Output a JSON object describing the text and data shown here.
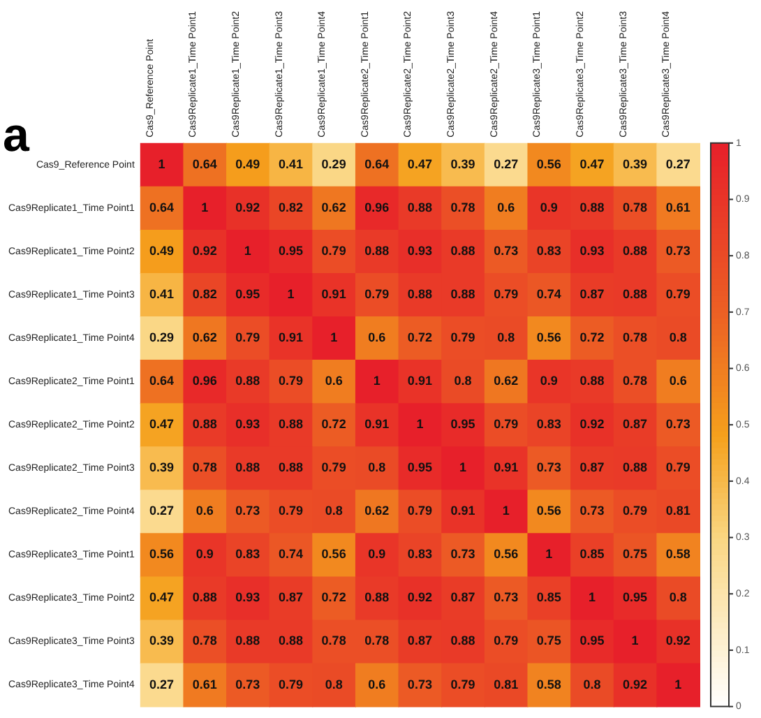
{
  "chart_data": {
    "type": "heatmap",
    "annotations": [
      "a"
    ],
    "categories": [
      "Cas9_Reference Point",
      "Cas9Replicate1_Time Point1",
      "Cas9Replicate1_Time Point2",
      "Cas9Replicate1_Time Point3",
      "Cas9Replicate1_Time Point4",
      "Cas9Replicate2_Time Point1",
      "Cas9Replicate2_Time Point2",
      "Cas9Replicate2_Time Point3",
      "Cas9Replicate2_Time Point4",
      "Cas9Replicate3_Time Point1",
      "Cas9Replicate3_Time Point2",
      "Cas9Replicate3_Time Point3",
      "Cas9Replicate3_Time Point4"
    ],
    "y_categories": [
      "Cas9_Reference Point",
      "Cas9Replicate1_Time Point1",
      "Cas9Replicate1_Time Point2",
      "Cas9Replicate1_Time Point3",
      "Cas9Replicate1_Time Point4",
      "Cas9Replicate2_Time Point1",
      "Cas9Replicate2_Time Point2",
      "Cas9Replicate2_Time Point3",
      "Cas9Replicate2_Time Point4",
      "Cas9Replicate3_Time Point1",
      "Cas9Replicate3_Time Point2",
      "Cas9Replicate3_Time Point3",
      "Cas9Replicate3_Time Point4"
    ],
    "cells": [
      [
        1,
        0.64,
        0.49,
        0.41,
        0.29,
        0.64,
        0.47,
        0.39,
        0.27,
        0.56,
        0.47,
        0.39,
        0.27
      ],
      [
        0.64,
        1,
        0.92,
        0.82,
        0.62,
        0.96,
        0.88,
        0.78,
        0.6,
        0.9,
        0.88,
        0.78,
        0.61
      ],
      [
        0.49,
        0.92,
        1,
        0.95,
        0.79,
        0.88,
        0.93,
        0.88,
        0.73,
        0.83,
        0.93,
        0.88,
        0.73
      ],
      [
        0.41,
        0.82,
        0.95,
        1,
        0.91,
        0.79,
        0.88,
        0.88,
        0.79,
        0.74,
        0.87,
        0.88,
        0.79
      ],
      [
        0.29,
        0.62,
        0.79,
        0.91,
        1,
        0.6,
        0.72,
        0.79,
        0.8,
        0.56,
        0.72,
        0.78,
        0.8
      ],
      [
        0.64,
        0.96,
        0.88,
        0.79,
        0.6,
        1,
        0.91,
        0.8,
        0.62,
        0.9,
        0.88,
        0.78,
        0.6
      ],
      [
        0.47,
        0.88,
        0.93,
        0.88,
        0.72,
        0.91,
        1,
        0.95,
        0.79,
        0.83,
        0.92,
        0.87,
        0.73
      ],
      [
        0.39,
        0.78,
        0.88,
        0.88,
        0.79,
        0.8,
        0.95,
        1,
        0.91,
        0.73,
        0.87,
        0.88,
        0.79
      ],
      [
        0.27,
        0.6,
        0.73,
        0.79,
        0.8,
        0.62,
        0.79,
        0.91,
        1,
        0.56,
        0.73,
        0.79,
        0.81
      ],
      [
        0.56,
        0.9,
        0.83,
        0.74,
        0.56,
        0.9,
        0.83,
        0.73,
        0.56,
        1,
        0.85,
        0.75,
        0.58
      ],
      [
        0.47,
        0.88,
        0.93,
        0.87,
        0.72,
        0.88,
        0.92,
        0.87,
        0.73,
        0.85,
        1,
        0.95,
        0.8
      ],
      [
        0.39,
        0.78,
        0.88,
        0.88,
        0.78,
        0.78,
        0.87,
        0.88,
        0.79,
        0.75,
        0.95,
        1,
        0.92
      ],
      [
        0.27,
        0.61,
        0.73,
        0.79,
        0.8,
        0.6,
        0.73,
        0.79,
        0.81,
        0.58,
        0.8,
        0.92,
        1
      ]
    ],
    "data_labels": true,
    "clim": [
      0,
      1
    ],
    "cticks": [
      0,
      0.1,
      0.2,
      0.3,
      0.4,
      0.5,
      0.6,
      0.7,
      0.8,
      0.9,
      1
    ]
  }
}
